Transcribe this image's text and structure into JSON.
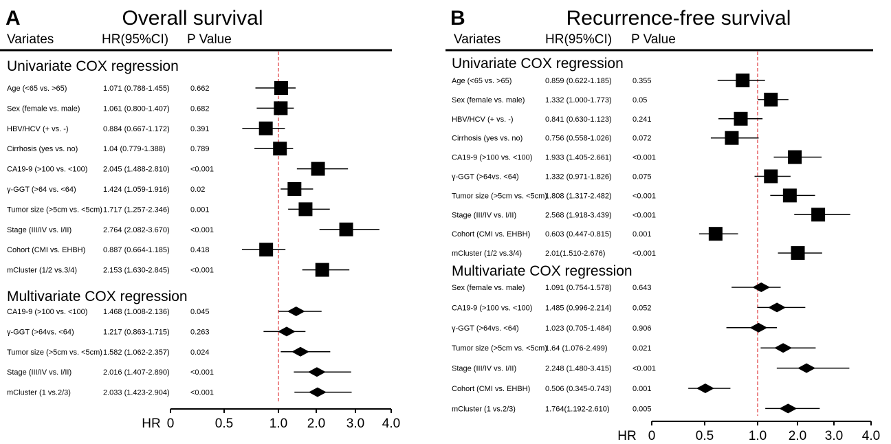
{
  "chart_data": [
    {
      "type": "forest",
      "panel_letter": "A",
      "title": "Overall survival",
      "headers": {
        "variates": "Variates",
        "hr": "HR(95%CI)",
        "p": "P Value"
      },
      "axis_label": "HR",
      "ticks": [
        "0",
        "0.5",
        "1.0",
        "2.0",
        "3.0",
        "4.0"
      ],
      "reference_line": 1.0,
      "sections": [
        {
          "title": "Univariate COX regression",
          "marker": "square",
          "rows": [
            {
              "label": "Age (<65 vs. >65)",
              "hr_text": "1.071 (0.788-1.455)",
              "p": "0.662",
              "hr": 1.071,
              "lo": 0.788,
              "hi": 1.455
            },
            {
              "label": "Sex (female vs. male)",
              "hr_text": "1.061 (0.800-1.407)",
              "p": "0.682",
              "hr": 1.061,
              "lo": 0.8,
              "hi": 1.407
            },
            {
              "label": "HBV/HCV (+ vs. -)",
              "hr_text": "0.884 (0.667-1.172)",
              "p": "0.391",
              "hr": 0.884,
              "lo": 0.667,
              "hi": 1.172
            },
            {
              "label": "Cirrhosis (yes vs. no)",
              "hr_text": "1.04 (0.779-1.388)",
              "p": "0.789",
              "hr": 1.04,
              "lo": 0.779,
              "hi": 1.388
            },
            {
              "label": "CA19-9 (>100 vs. <100)",
              "hr_text": "2.045 (1.488-2.810)",
              "p": "<0.001",
              "hr": 2.045,
              "lo": 1.488,
              "hi": 2.81
            },
            {
              "label": "γ-GGT (>64 vs. <64)",
              "hr_text": "1.424 (1.059-1.916)",
              "p": "0.02",
              "hr": 1.424,
              "lo": 1.059,
              "hi": 1.916
            },
            {
              "label": "Tumor size (>5cm vs. <5cm)",
              "hr_text": "1.717 (1.257-2.346)",
              "p": "0.001",
              "hr": 1.717,
              "lo": 1.257,
              "hi": 2.346
            },
            {
              "label": "Stage (III/IV vs. I/II)",
              "hr_text": "2.764 (2.082-3.670)",
              "p": "<0.001",
              "hr": 2.764,
              "lo": 2.082,
              "hi": 3.67
            },
            {
              "label": "Cohort (CMI vs. EHBH)",
              "hr_text": "0.887 (0.664-1.185)",
              "p": "0.418",
              "hr": 0.887,
              "lo": 0.664,
              "hi": 1.185
            },
            {
              "label": "mCluster (1/2 vs.3/4)",
              "hr_text": "2.153 (1.630-2.845)",
              "p": "<0.001",
              "hr": 2.153,
              "lo": 1.63,
              "hi": 2.845
            }
          ]
        },
        {
          "title": "Multivariate COX regression",
          "marker": "diamond",
          "rows": [
            {
              "label": "CA19-9 (>100 vs. <100)",
              "hr_text": "1.468 (1.008-2.136)",
              "p": "0.045",
              "hr": 1.468,
              "lo": 1.008,
              "hi": 2.136
            },
            {
              "label": "γ-GGT (>64vs. <64)",
              "hr_text": "1.217 (0.863-1.715)",
              "p": "0.263",
              "hr": 1.217,
              "lo": 0.863,
              "hi": 1.715
            },
            {
              "label": "Tumor size (>5cm vs. <5cm)",
              "hr_text": "1.582 (1.062-2.357)",
              "p": "0.024",
              "hr": 1.582,
              "lo": 1.062,
              "hi": 2.357
            },
            {
              "label": "Stage (III/IV vs. I/II)",
              "hr_text": "2.016 (1.407-2.890)",
              "p": "<0.001",
              "hr": 2.016,
              "lo": 1.407,
              "hi": 2.89
            },
            {
              "label": "mCluster (1 vs.2/3)",
              "hr_text": "2.033 (1.423-2.904)",
              "p": "<0.001",
              "hr": 2.033,
              "lo": 1.423,
              "hi": 2.904
            }
          ]
        }
      ]
    },
    {
      "type": "forest",
      "panel_letter": "B",
      "title": "Recurrence-free survival",
      "headers": {
        "variates": "Variates",
        "hr": "HR(95%CI)",
        "p": "P Value"
      },
      "axis_label": "HR",
      "ticks": [
        "0",
        "0.5",
        "1.0",
        "2.0",
        "3.0",
        "4.0"
      ],
      "reference_line": 1.0,
      "sections": [
        {
          "title": "Univariate COX regression",
          "marker": "square",
          "rows": [
            {
              "label": "Age (<65 vs. >65)",
              "hr_text": "0.859 (0.622-1.185)",
              "p": "0.355",
              "hr": 0.859,
              "lo": 0.622,
              "hi": 1.185
            },
            {
              "label": "Sex (female vs. male)",
              "hr_text": "1.332 (1.000-1.773)",
              "p": "0.05",
              "hr": 1.332,
              "lo": 1.0,
              "hi": 1.773
            },
            {
              "label": "HBV/HCV (+ vs. -)",
              "hr_text": "0.841 (0.630-1.123)",
              "p": "0.241",
              "hr": 0.841,
              "lo": 0.63,
              "hi": 1.123
            },
            {
              "label": "Cirrhosis (yes vs. no)",
              "hr_text": "0.756 (0.558-1.026)",
              "p": "0.072",
              "hr": 0.756,
              "lo": 0.558,
              "hi": 1.026
            },
            {
              "label": "CA19-9 (>100 vs. <100)",
              "hr_text": "1.933 (1.405-2.661)",
              "p": "<0.001",
              "hr": 1.933,
              "lo": 1.405,
              "hi": 2.661
            },
            {
              "label": "γ-GGT (>64vs. <64)",
              "hr_text": "1.332 (0.971-1.826)",
              "p": "0.075",
              "hr": 1.332,
              "lo": 0.971,
              "hi": 1.826
            },
            {
              "label": "Tumor size (>5cm vs. <5cm)",
              "hr_text": "1.808 (1.317-2.482)",
              "p": "<0.001",
              "hr": 1.808,
              "lo": 1.317,
              "hi": 2.482
            },
            {
              "label": "Stage (III/IV vs. I/II)",
              "hr_text": "2.568 (1.918-3.439)",
              "p": "<0.001",
              "hr": 2.568,
              "lo": 1.918,
              "hi": 3.439
            },
            {
              "label": "Cohort (CMI vs. EHBH)",
              "hr_text": "0.603 (0.447-0.815)",
              "p": "0.001",
              "hr": 0.603,
              "lo": 0.447,
              "hi": 0.815
            },
            {
              "label": "mCluster (1/2 vs.3/4)",
              "hr_text": "2.01(1.510-2.676)",
              "p": "<0.001",
              "hr": 2.01,
              "lo": 1.51,
              "hi": 2.676
            }
          ]
        },
        {
          "title": "Multivariate COX regression",
          "marker": "diamond",
          "rows": [
            {
              "label": "Sex (female vs. male)",
              "hr_text": "1.091 (0.754-1.578)",
              "p": "0.643",
              "hr": 1.091,
              "lo": 0.754,
              "hi": 1.578
            },
            {
              "label": "CA19-9 (>100 vs. <100)",
              "hr_text": "1.485 (0.996-2.214)",
              "p": "0.052",
              "hr": 1.485,
              "lo": 0.996,
              "hi": 2.214
            },
            {
              "label": "γ-GGT (>64vs. <64)",
              "hr_text": "1.023 (0.705-1.484)",
              "p": "0.906",
              "hr": 1.023,
              "lo": 0.705,
              "hi": 1.484
            },
            {
              "label": "Tumor size (>5cm vs. <5cm)",
              "hr_text": "1.64 (1.076-2.499)",
              "p": "0.021",
              "hr": 1.64,
              "lo": 1.076,
              "hi": 2.499
            },
            {
              "label": "Stage (III/IV vs. I/II)",
              "hr_text": "2.248 (1.480-3.415)",
              "p": "<0.001",
              "hr": 2.248,
              "lo": 1.48,
              "hi": 3.415
            },
            {
              "label": "Cohort (CMI vs. EHBH)",
              "hr_text": "0.506 (0.345-0.743)",
              "p": "0.001",
              "hr": 0.506,
              "lo": 0.345,
              "hi": 0.743
            },
            {
              "label": "mCluster (1 vs.2/3)",
              "hr_text": "1.764(1.192-2.610)",
              "p": "0.005",
              "hr": 1.764,
              "lo": 1.192,
              "hi": 2.61
            }
          ]
        }
      ]
    }
  ]
}
